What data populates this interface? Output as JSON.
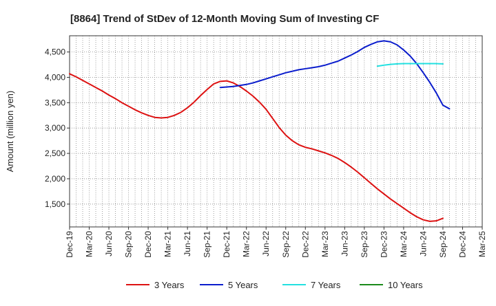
{
  "chart_data": {
    "type": "line",
    "title": "[8864]  Trend of StDev of 12-Month Moving Sum of Investing CF",
    "ylabel": "Amount (million yen)",
    "xlabel": "",
    "ylim": [
      1050,
      4820
    ],
    "yticks": [
      1500,
      2000,
      2500,
      3000,
      3500,
      4000,
      4500
    ],
    "ytick_labels": [
      "1,500",
      "2,000",
      "2,500",
      "3,000",
      "3,500",
      "4,000",
      "4,500"
    ],
    "x_range": [
      "2019-12",
      "2025-03"
    ],
    "xtick_labels": [
      "Dec-19",
      "Mar-20",
      "Jun-20",
      "Sep-20",
      "Dec-20",
      "Mar-21",
      "Jun-21",
      "Sep-21",
      "Dec-21",
      "Mar-22",
      "Jun-22",
      "Sep-22",
      "Dec-22",
      "Mar-23",
      "Jun-23",
      "Sep-23",
      "Dec-23",
      "Mar-24",
      "Jun-24",
      "Sep-24",
      "Dec-24",
      "Mar-25"
    ],
    "grid": true,
    "legend_position": "bottom",
    "series": [
      {
        "name": "3 Years",
        "color": "#dd1111",
        "points": [
          [
            "2019-12",
            4070
          ],
          [
            "2020-01",
            4010
          ],
          [
            "2020-02",
            3940
          ],
          [
            "2020-03",
            3870
          ],
          [
            "2020-04",
            3800
          ],
          [
            "2020-05",
            3730
          ],
          [
            "2020-06",
            3650
          ],
          [
            "2020-07",
            3580
          ],
          [
            "2020-08",
            3500
          ],
          [
            "2020-09",
            3430
          ],
          [
            "2020-10",
            3360
          ],
          [
            "2020-11",
            3300
          ],
          [
            "2020-12",
            3250
          ],
          [
            "2021-01",
            3210
          ],
          [
            "2021-02",
            3200
          ],
          [
            "2021-03",
            3210
          ],
          [
            "2021-04",
            3250
          ],
          [
            "2021-05",
            3310
          ],
          [
            "2021-06",
            3400
          ],
          [
            "2021-07",
            3510
          ],
          [
            "2021-08",
            3640
          ],
          [
            "2021-09",
            3760
          ],
          [
            "2021-10",
            3870
          ],
          [
            "2021-11",
            3920
          ],
          [
            "2021-12",
            3930
          ],
          [
            "2022-01",
            3890
          ],
          [
            "2022-02",
            3820
          ],
          [
            "2022-03",
            3730
          ],
          [
            "2022-04",
            3630
          ],
          [
            "2022-05",
            3510
          ],
          [
            "2022-06",
            3370
          ],
          [
            "2022-07",
            3190
          ],
          [
            "2022-08",
            3010
          ],
          [
            "2022-09",
            2860
          ],
          [
            "2022-10",
            2750
          ],
          [
            "2022-11",
            2670
          ],
          [
            "2022-12",
            2620
          ],
          [
            "2023-01",
            2590
          ],
          [
            "2023-02",
            2550
          ],
          [
            "2023-03",
            2510
          ],
          [
            "2023-04",
            2460
          ],
          [
            "2023-05",
            2400
          ],
          [
            "2023-06",
            2320
          ],
          [
            "2023-07",
            2230
          ],
          [
            "2023-08",
            2130
          ],
          [
            "2023-09",
            2020
          ],
          [
            "2023-10",
            1910
          ],
          [
            "2023-11",
            1800
          ],
          [
            "2023-12",
            1700
          ],
          [
            "2024-01",
            1600
          ],
          [
            "2024-02",
            1510
          ],
          [
            "2024-03",
            1420
          ],
          [
            "2024-04",
            1330
          ],
          [
            "2024-05",
            1250
          ],
          [
            "2024-06",
            1190
          ],
          [
            "2024-07",
            1160
          ],
          [
            "2024-08",
            1170
          ],
          [
            "2024-09",
            1220
          ]
        ]
      },
      {
        "name": "5 Years",
        "color": "#0a1ccc",
        "points": [
          [
            "2021-11",
            3800
          ],
          [
            "2021-12",
            3810
          ],
          [
            "2022-01",
            3820
          ],
          [
            "2022-02",
            3840
          ],
          [
            "2022-03",
            3860
          ],
          [
            "2022-04",
            3890
          ],
          [
            "2022-05",
            3930
          ],
          [
            "2022-06",
            3970
          ],
          [
            "2022-07",
            4010
          ],
          [
            "2022-08",
            4050
          ],
          [
            "2022-09",
            4090
          ],
          [
            "2022-10",
            4120
          ],
          [
            "2022-11",
            4150
          ],
          [
            "2022-12",
            4170
          ],
          [
            "2023-01",
            4190
          ],
          [
            "2023-02",
            4210
          ],
          [
            "2023-03",
            4240
          ],
          [
            "2023-04",
            4280
          ],
          [
            "2023-05",
            4320
          ],
          [
            "2023-06",
            4380
          ],
          [
            "2023-07",
            4440
          ],
          [
            "2023-08",
            4510
          ],
          [
            "2023-09",
            4590
          ],
          [
            "2023-10",
            4650
          ],
          [
            "2023-11",
            4700
          ],
          [
            "2023-12",
            4720
          ],
          [
            "2024-01",
            4700
          ],
          [
            "2024-02",
            4640
          ],
          [
            "2024-03",
            4540
          ],
          [
            "2024-04",
            4420
          ],
          [
            "2024-05",
            4270
          ],
          [
            "2024-06",
            4090
          ],
          [
            "2024-07",
            3900
          ],
          [
            "2024-08",
            3690
          ],
          [
            "2024-09",
            3450
          ],
          [
            "2024-10",
            3380
          ]
        ]
      },
      {
        "name": "7 Years",
        "color": "#22e0e0",
        "points": [
          [
            "2023-11",
            4220
          ],
          [
            "2023-12",
            4240
          ],
          [
            "2024-01",
            4255
          ],
          [
            "2024-02",
            4265
          ],
          [
            "2024-03",
            4270
          ],
          [
            "2024-04",
            4270
          ],
          [
            "2024-05",
            4270
          ],
          [
            "2024-06",
            4270
          ],
          [
            "2024-07",
            4270
          ],
          [
            "2024-08",
            4270
          ],
          [
            "2024-09",
            4265
          ]
        ]
      },
      {
        "name": "10 Years",
        "color": "#1a8a1a",
        "points": []
      }
    ]
  }
}
